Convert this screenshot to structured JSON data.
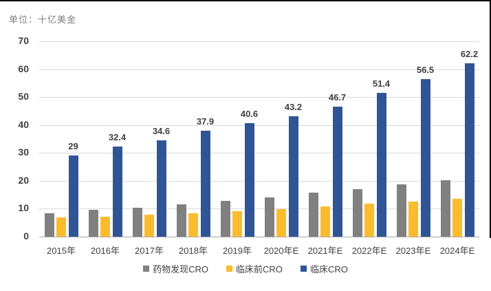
{
  "unit_label": "单位：十亿美金",
  "colors": {
    "gray": "#808080",
    "yellow": "#fbbc2c",
    "blue": "#2f5597",
    "gridline": "#d9d9d9",
    "axis_text": "#3f3f3f",
    "unit_text": "#7f7f7f"
  },
  "chart_data": {
    "type": "bar",
    "title": "",
    "xlabel": "",
    "ylabel": "单位：十亿美金",
    "categories": [
      "2015年",
      "2016年",
      "2017年",
      "2018年",
      "2019年",
      "2020年E",
      "2021年E",
      "2022年E",
      "2023年E",
      "2024年E"
    ],
    "series": [
      {
        "name": "药物发现CRO",
        "color_key": "gray",
        "values": [
          8.5,
          9.5,
          10.4,
          11.5,
          12.8,
          14.1,
          15.8,
          17.0,
          18.8,
          20.3
        ]
      },
      {
        "name": "临床前CRO",
        "color_key": "yellow",
        "values": [
          6.9,
          7.2,
          7.8,
          8.5,
          9.1,
          9.8,
          10.8,
          11.8,
          12.5,
          13.6
        ]
      },
      {
        "name": "临床CRO",
        "color_key": "blue",
        "values": [
          29,
          32.4,
          34.6,
          37.9,
          40.6,
          43.2,
          46.7,
          51.4,
          56.5,
          62.2
        ],
        "data_labels": [
          "29",
          "32.4",
          "34.6",
          "37.9",
          "40.6",
          "43.2",
          "46.7",
          "51.4",
          "56.5",
          "62.2"
        ]
      }
    ],
    "ylim": [
      0,
      70
    ],
    "yticks": [
      0,
      10,
      20,
      30,
      40,
      50,
      60,
      70
    ],
    "grid": true,
    "legend_position": "bottom"
  }
}
